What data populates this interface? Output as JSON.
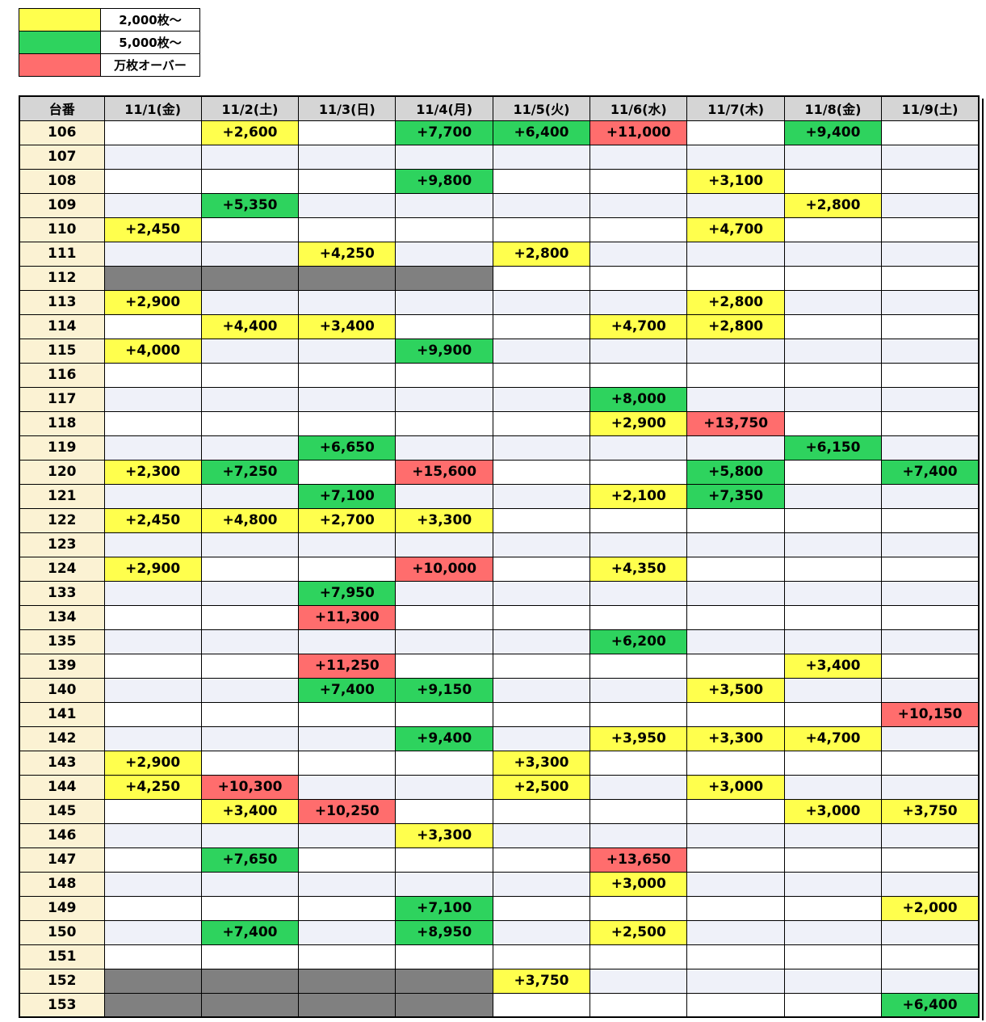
{
  "band_colors": {
    "y": "#FFFF4D",
    "g": "#2ED35E",
    "r": "#FF6D6D",
    "x": "#808080"
  },
  "legend": {
    "items": [
      {
        "label": "2,000枚～",
        "band": "y"
      },
      {
        "label": "5,000枚～",
        "band": "g"
      },
      {
        "label": "万枚オーバー",
        "band": "r"
      }
    ]
  },
  "chart_data": {
    "type": "table",
    "corner_header": "台番",
    "columns": [
      "11/1(金)",
      "11/2(土)",
      "11/3(日)",
      "11/4(月)",
      "11/5(火)",
      "11/6(水)",
      "11/7(木)",
      "11/8(金)",
      "11/9(土)"
    ],
    "rows": [
      {
        "machine": "106",
        "cells": [
          "",
          "y:+2,600",
          "",
          "g:+7,700",
          "g:+6,400",
          "r:+11,000",
          "",
          "g:+9,400",
          ""
        ]
      },
      {
        "machine": "107",
        "cells": [
          "",
          "",
          "",
          "",
          "",
          "",
          "",
          "",
          ""
        ]
      },
      {
        "machine": "108",
        "cells": [
          "",
          "",
          "",
          "g:+9,800",
          "",
          "",
          "y:+3,100",
          "",
          ""
        ]
      },
      {
        "machine": "109",
        "cells": [
          "",
          "g:+5,350",
          "",
          "",
          "",
          "",
          "",
          "y:+2,800",
          ""
        ]
      },
      {
        "machine": "110",
        "cells": [
          "y:+2,450",
          "",
          "",
          "",
          "",
          "",
          "y:+4,700",
          "",
          ""
        ]
      },
      {
        "machine": "111",
        "cells": [
          "",
          "",
          "y:+4,250",
          "",
          "y:+2,800",
          "",
          "",
          "",
          ""
        ]
      },
      {
        "machine": "112",
        "cells": [
          "x",
          "x",
          "x",
          "x",
          "",
          "",
          "",
          "",
          ""
        ]
      },
      {
        "machine": "113",
        "cells": [
          "y:+2,900",
          "",
          "",
          "",
          "",
          "",
          "y:+2,800",
          "",
          ""
        ]
      },
      {
        "machine": "114",
        "cells": [
          "",
          "y:+4,400",
          "y:+3,400",
          "",
          "",
          "y:+4,700",
          "y:+2,800",
          "",
          ""
        ]
      },
      {
        "machine": "115",
        "cells": [
          "y:+4,000",
          "",
          "",
          "g:+9,900",
          "",
          "",
          "",
          "",
          ""
        ]
      },
      {
        "machine": "116",
        "cells": [
          "",
          "",
          "",
          "",
          "",
          "",
          "",
          "",
          ""
        ]
      },
      {
        "machine": "117",
        "cells": [
          "",
          "",
          "",
          "",
          "",
          "g:+8,000",
          "",
          "",
          ""
        ]
      },
      {
        "machine": "118",
        "cells": [
          "",
          "",
          "",
          "",
          "",
          "y:+2,900",
          "r:+13,750",
          "",
          ""
        ]
      },
      {
        "machine": "119",
        "cells": [
          "",
          "",
          "g:+6,650",
          "",
          "",
          "",
          "",
          "g:+6,150",
          ""
        ]
      },
      {
        "machine": "120",
        "cells": [
          "y:+2,300",
          "g:+7,250",
          "",
          "r:+15,600",
          "",
          "",
          "g:+5,800",
          "",
          "g:+7,400"
        ]
      },
      {
        "machine": "121",
        "cells": [
          "",
          "",
          "g:+7,100",
          "",
          "",
          "y:+2,100",
          "g:+7,350",
          "",
          ""
        ]
      },
      {
        "machine": "122",
        "cells": [
          "y:+2,450",
          "y:+4,800",
          "y:+2,700",
          "y:+3,300",
          "",
          "",
          "",
          "",
          ""
        ]
      },
      {
        "machine": "123",
        "cells": [
          "",
          "",
          "",
          "",
          "",
          "",
          "",
          "",
          ""
        ]
      },
      {
        "machine": "124",
        "cells": [
          "y:+2,900",
          "",
          "",
          "r:+10,000",
          "",
          "y:+4,350",
          "",
          "",
          ""
        ]
      },
      {
        "machine": "133",
        "cells": [
          "",
          "",
          "g:+7,950",
          "",
          "",
          "",
          "",
          "",
          ""
        ]
      },
      {
        "machine": "134",
        "cells": [
          "",
          "",
          "r:+11,300",
          "",
          "",
          "",
          "",
          "",
          ""
        ]
      },
      {
        "machine": "135",
        "cells": [
          "",
          "",
          "",
          "",
          "",
          "g:+6,200",
          "",
          "",
          ""
        ]
      },
      {
        "machine": "139",
        "cells": [
          "",
          "",
          "r:+11,250",
          "",
          "",
          "",
          "",
          "y:+3,400",
          ""
        ]
      },
      {
        "machine": "140",
        "cells": [
          "",
          "",
          "g:+7,400",
          "g:+9,150",
          "",
          "",
          "y:+3,500",
          "",
          ""
        ]
      },
      {
        "machine": "141",
        "cells": [
          "",
          "",
          "",
          "",
          "",
          "",
          "",
          "",
          "r:+10,150"
        ]
      },
      {
        "machine": "142",
        "cells": [
          "",
          "",
          "",
          "g:+9,400",
          "",
          "y:+3,950",
          "y:+3,300",
          "y:+4,700",
          ""
        ]
      },
      {
        "machine": "143",
        "cells": [
          "y:+2,900",
          "",
          "",
          "",
          "y:+3,300",
          "",
          "",
          "",
          ""
        ]
      },
      {
        "machine": "144",
        "cells": [
          "y:+4,250",
          "r:+10,300",
          "",
          "",
          "y:+2,500",
          "",
          "y:+3,000",
          "",
          ""
        ]
      },
      {
        "machine": "145",
        "cells": [
          "",
          "y:+3,400",
          "r:+10,250",
          "",
          "",
          "",
          "",
          "y:+3,000",
          "y:+3,750"
        ]
      },
      {
        "machine": "146",
        "cells": [
          "",
          "",
          "",
          "y:+3,300",
          "",
          "",
          "",
          "",
          ""
        ]
      },
      {
        "machine": "147",
        "cells": [
          "",
          "g:+7,650",
          "",
          "",
          "",
          "r:+13,650",
          "",
          "",
          ""
        ]
      },
      {
        "machine": "148",
        "cells": [
          "",
          "",
          "",
          "",
          "",
          "y:+3,000",
          "",
          "",
          ""
        ]
      },
      {
        "machine": "149",
        "cells": [
          "",
          "",
          "",
          "g:+7,100",
          "",
          "",
          "",
          "",
          "y:+2,000"
        ]
      },
      {
        "machine": "150",
        "cells": [
          "",
          "g:+7,400",
          "",
          "g:+8,950",
          "",
          "y:+2,500",
          "",
          "",
          ""
        ]
      },
      {
        "machine": "151",
        "cells": [
          "",
          "",
          "",
          "",
          "",
          "",
          "",
          "",
          ""
        ]
      },
      {
        "machine": "152",
        "cells": [
          "x",
          "x",
          "x",
          "x",
          "y:+3,750",
          "",
          "",
          "",
          ""
        ]
      },
      {
        "machine": "153",
        "cells": [
          "x",
          "x",
          "x",
          "x",
          "",
          "",
          "",
          "",
          "g:+6,400"
        ]
      }
    ]
  }
}
